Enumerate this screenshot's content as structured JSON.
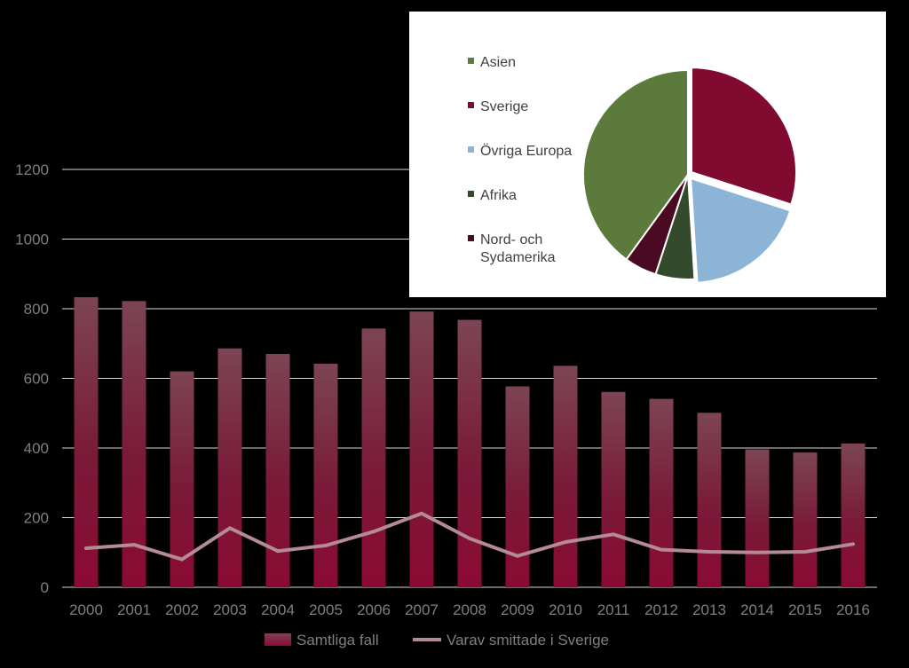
{
  "chart_data": [
    {
      "type": "bar",
      "categories": [
        "2000",
        "2001",
        "2002",
        "2003",
        "2004",
        "2005",
        "2006",
        "2007",
        "2008",
        "2009",
        "2010",
        "2011",
        "2012",
        "2013",
        "2014",
        "2015",
        "2016"
      ],
      "series": [
        {
          "name": "Samtliga fall",
          "kind": "bar",
          "color": "#8a0a33",
          "values": [
            833,
            822,
            620,
            686,
            670,
            642,
            743,
            792,
            768,
            577,
            636,
            561,
            541,
            501,
            396,
            387,
            413
          ]
        },
        {
          "name": "Varav smittade i Sverige",
          "kind": "line",
          "color": "#b38a95",
          "values": [
            112,
            122,
            80,
            170,
            104,
            120,
            160,
            212,
            140,
            90,
            130,
            152,
            108,
            102,
            100,
            102,
            124
          ]
        }
      ],
      "ylim": [
        0,
        1200
      ],
      "yticks": [
        0,
        200,
        400,
        600,
        800,
        1000,
        1200
      ],
      "grid": true,
      "legend": "bottom",
      "title": "",
      "xlabel": "",
      "ylabel": ""
    },
    {
      "type": "pie",
      "categories": [
        "Asien",
        "Sverige",
        "Övriga Europa",
        "Afrika",
        "Nord- och Sydamerika"
      ],
      "values": [
        40,
        30,
        19,
        6,
        5
      ],
      "colors": [
        "#5b7a3c",
        "#800a30",
        "#8cb4d6",
        "#344a2c",
        "#4a0a22"
      ],
      "legend": "left"
    }
  ]
}
